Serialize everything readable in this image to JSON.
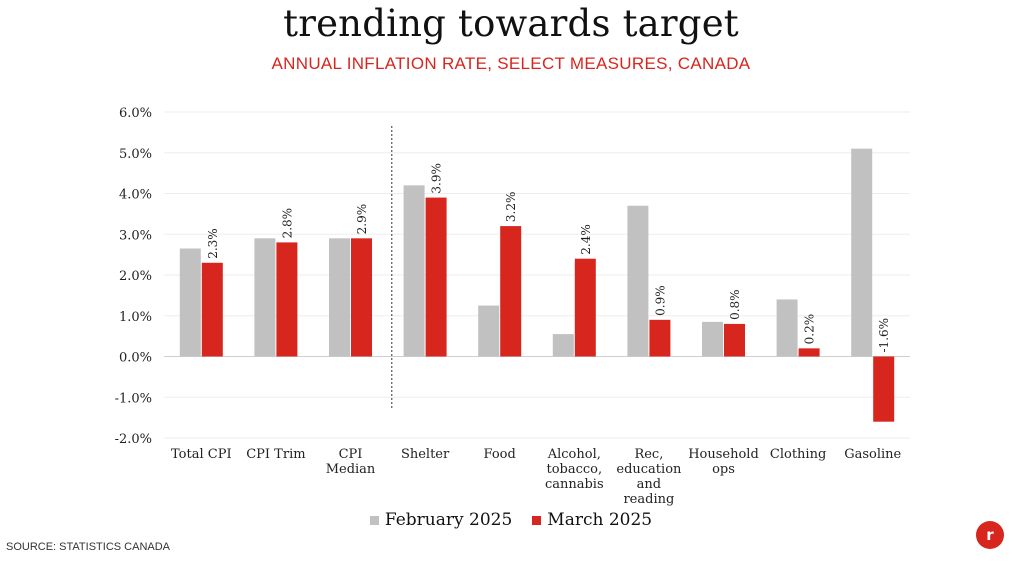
{
  "title": "trending towards target",
  "subtitle": "ANNUAL INFLATION RATE, SELECT MEASURES, CANADA",
  "source": "SOURCE: STATISTICS CANADA",
  "logo_text": "r",
  "colors": {
    "feb": "#c1c1c1",
    "mar": "#d7261e",
    "accent": "#d7261e"
  },
  "chart_data": {
    "type": "bar",
    "categories": [
      "Total CPI",
      "CPI Trim",
      "CPI Median",
      "Shelter",
      "Food",
      "Alcohol, tobacco, cannabis",
      "Rec, education and reading",
      "Household ops",
      "Clothing",
      "Gasoline"
    ],
    "category_lines": [
      [
        "Total CPI"
      ],
      [
        "CPI Trim"
      ],
      [
        "CPI",
        "Median"
      ],
      [
        "Shelter"
      ],
      [
        "Food"
      ],
      [
        "Alcohol,",
        "tobacco,",
        "cannabis"
      ],
      [
        "Rec,",
        "education",
        "and",
        "reading"
      ],
      [
        "Household",
        "ops"
      ],
      [
        "Clothing"
      ],
      [
        "Gasoline"
      ]
    ],
    "series": [
      {
        "name": "February 2025",
        "values": [
          2.65,
          2.9,
          2.9,
          4.2,
          1.25,
          0.55,
          3.7,
          0.85,
          1.4,
          5.1
        ]
      },
      {
        "name": "March 2025",
        "values": [
          2.3,
          2.8,
          2.9,
          3.9,
          3.2,
          2.4,
          0.9,
          0.8,
          0.2,
          -1.6
        ]
      }
    ],
    "data_labels": [
      "2.3%",
      "2.8%",
      "2.9%",
      "3.9%",
      "3.2%",
      "2.4%",
      "0.9%",
      "0.8%",
      "0.2%",
      "-1.6%"
    ],
    "yticks": [
      "6.0%",
      "5.0%",
      "4.0%",
      "3.0%",
      "2.0%",
      "1.0%",
      "0.0%",
      "-1.0%",
      "-2.0%"
    ],
    "ylim": [
      -2,
      6
    ],
    "xlabel": "",
    "ylabel": "",
    "grid": true,
    "legend": "bottom",
    "divider_after_index": 2
  }
}
